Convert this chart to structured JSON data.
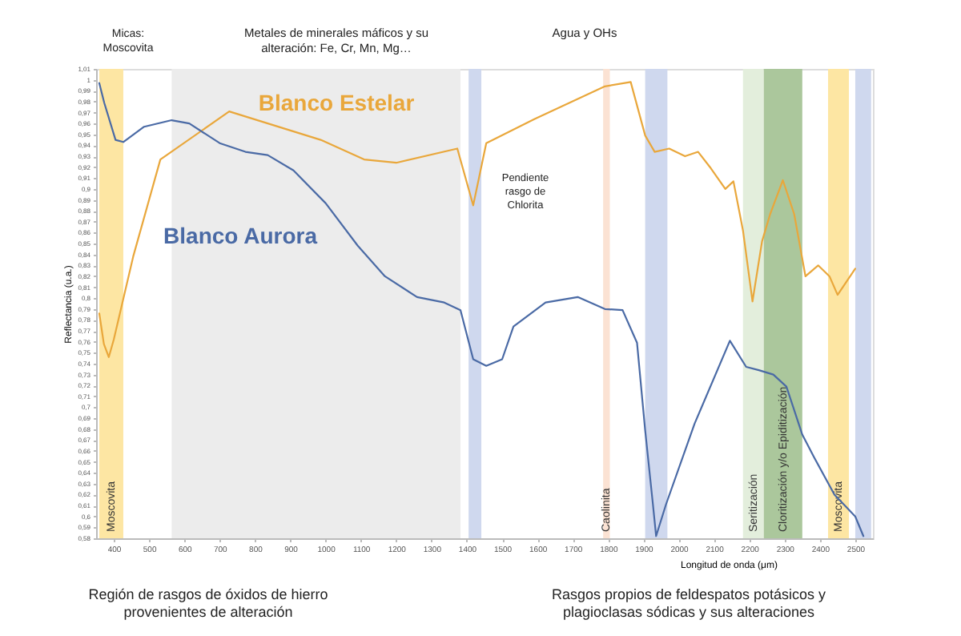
{
  "chart_data": {
    "type": "line",
    "xlabel": "Longitud de onda (μm)",
    "ylabel": "Reflectancia (u.a.)",
    "xlim": [
      350,
      2550
    ],
    "ylim": [
      0.58,
      1.01
    ],
    "xticks": [
      400,
      500,
      600,
      700,
      800,
      900,
      1000,
      1100,
      1200,
      1300,
      1400,
      1500,
      1600,
      1700,
      1800,
      1900,
      2000,
      2100,
      2200,
      2300,
      2400,
      2500
    ],
    "yticks": [
      {
        "value": 0.58,
        "label": "0,58"
      },
      {
        "value": 0.59,
        "label": "0,59"
      },
      {
        "value": 0.6,
        "label": "0,6"
      },
      {
        "value": 0.61,
        "label": "0,61"
      },
      {
        "value": 0.62,
        "label": "0,62"
      },
      {
        "value": 0.63,
        "label": "0,63"
      },
      {
        "value": 0.64,
        "label": "0,64"
      },
      {
        "value": 0.65,
        "label": "0,65"
      },
      {
        "value": 0.66,
        "label": "0,66"
      },
      {
        "value": 0.67,
        "label": "0,67"
      },
      {
        "value": 0.68,
        "label": "0,68"
      },
      {
        "value": 0.69,
        "label": "0,69"
      },
      {
        "value": 0.7,
        "label": "0,7"
      },
      {
        "value": 0.71,
        "label": "0,71"
      },
      {
        "value": 0.72,
        "label": "0,72"
      },
      {
        "value": 0.73,
        "label": "0,73"
      },
      {
        "value": 0.74,
        "label": "0,74"
      },
      {
        "value": 0.75,
        "label": "0,75"
      },
      {
        "value": 0.76,
        "label": "0,76"
      },
      {
        "value": 0.77,
        "label": "0,77"
      },
      {
        "value": 0.78,
        "label": "0,78"
      },
      {
        "value": 0.79,
        "label": "0,79"
      },
      {
        "value": 0.8,
        "label": "0,8"
      },
      {
        "value": 0.81,
        "label": "0,81"
      },
      {
        "value": 0.82,
        "label": "0,82"
      },
      {
        "value": 0.83,
        "label": "0,83"
      },
      {
        "value": 0.84,
        "label": "0,84"
      },
      {
        "value": 0.85,
        "label": "0,85"
      },
      {
        "value": 0.86,
        "label": "0,86"
      },
      {
        "value": 0.87,
        "label": "0,87"
      },
      {
        "value": 0.88,
        "label": "0,88"
      },
      {
        "value": 0.89,
        "label": "0,89"
      },
      {
        "value": 0.9,
        "label": "0,9"
      },
      {
        "value": 0.91,
        "label": "0,91"
      },
      {
        "value": 0.92,
        "label": "0,92"
      },
      {
        "value": 0.93,
        "label": "0,93"
      },
      {
        "value": 0.94,
        "label": "0,94"
      },
      {
        "value": 0.95,
        "label": "0,95"
      },
      {
        "value": 0.96,
        "label": "0,96"
      },
      {
        "value": 0.97,
        "label": "0,97"
      },
      {
        "value": 0.98,
        "label": "0,98"
      },
      {
        "value": 0.99,
        "label": "0,99"
      },
      {
        "value": 1.0,
        "label": "1"
      },
      {
        "value": 1.01,
        "label": "1,01"
      }
    ],
    "grid": false,
    "legend": false,
    "marker": "none",
    "line_style": "solid",
    "series": [
      {
        "name": "Blanco Estelar",
        "color": "#e9a73b",
        "x": [
          359,
          372,
          386,
          400,
          455,
          532,
          727,
          986,
          1109,
          1200,
          1373,
          1418,
          1455,
          1591,
          1791,
          1864,
          1905,
          1932,
          1973,
          2018,
          2055,
          2091,
          2132,
          2155,
          2182,
          2209,
          2236,
          2259,
          2295,
          2327,
          2359,
          2395,
          2427,
          2450,
          2500
        ],
        "values": [
          0.786,
          0.758,
          0.746,
          0.762,
          0.838,
          0.927,
          0.971,
          0.945,
          0.927,
          0.924,
          0.937,
          0.885,
          0.942,
          0.964,
          0.994,
          0.998,
          0.949,
          0.934,
          0.937,
          0.93,
          0.934,
          0.919,
          0.9,
          0.907,
          0.862,
          0.797,
          0.852,
          0.877,
          0.908,
          0.877,
          0.82,
          0.83,
          0.82,
          0.803,
          0.827
        ]
      },
      {
        "name": "Blanco Aurora",
        "color": "#4a6aa5",
        "x": [
          359,
          373,
          405,
          427,
          486,
          564,
          614,
          700,
          773,
          836,
          909,
          1000,
          1091,
          1168,
          1259,
          1336,
          1382,
          1418,
          1455,
          1500,
          1532,
          1623,
          1714,
          1791,
          1841,
          1882,
          1905,
          1927,
          1936,
          1964,
          2045,
          2145,
          2191,
          2227,
          2268,
          2305,
          2350,
          2382,
          2441,
          2500,
          2523
        ],
        "values": [
          0.997,
          0.979,
          0.945,
          0.943,
          0.957,
          0.963,
          0.96,
          0.942,
          0.934,
          0.931,
          0.917,
          0.887,
          0.848,
          0.82,
          0.801,
          0.796,
          0.789,
          0.744,
          0.738,
          0.744,
          0.774,
          0.796,
          0.801,
          0.79,
          0.789,
          0.759,
          0.679,
          0.611,
          0.582,
          0.611,
          0.685,
          0.761,
          0.737,
          0.734,
          0.73,
          0.719,
          0.675,
          0.655,
          0.62,
          0.6,
          0.582
        ]
      }
    ],
    "bands": [
      {
        "axis": "x",
        "from": 359,
        "to": 427,
        "label": "Moscovita",
        "color": "#fde6a3"
      },
      {
        "axis": "x",
        "from": 564,
        "to": 1382,
        "label": null,
        "color": "#ececec"
      },
      {
        "axis": "x",
        "from": 1405,
        "to": 1441,
        "label": null,
        "color": "#cfd8ee"
      },
      {
        "axis": "x",
        "from": 1786,
        "to": 1805,
        "label": "Caolinita",
        "color": "#fbe2d3"
      },
      {
        "axis": "x",
        "from": 1905,
        "to": 1968,
        "label": null,
        "color": "#cfd8ee"
      },
      {
        "axis": "x",
        "from": 2182,
        "to": 2241,
        "label": "Seritización",
        "color": "#e3eedc"
      },
      {
        "axis": "x",
        "from": 2241,
        "to": 2350,
        "label": "Cloritización  y/o Epiditización",
        "color": "#abc79c"
      },
      {
        "axis": "x",
        "from": 2423,
        "to": 2482,
        "label": "Moscovita",
        "color": "#fde6a3"
      },
      {
        "axis": "x",
        "from": 2500,
        "to": 2545,
        "label": null,
        "color": "#cfd8ee"
      }
    ],
    "annotations": [
      "Micas:\nMoscovita",
      "Metales de minerales máficos y su\nalteración: Fe, Cr, Mn, Mg…",
      "Agua y OHs",
      "Región de rasgos de óxidos de hierro\nprovenientes de alteración",
      "Rasgos propios de feldespatos potásicos y\nplagioclasas sódicas y sus alteraciones",
      "Pendiente\nrasgo de\nChlorita"
    ]
  }
}
